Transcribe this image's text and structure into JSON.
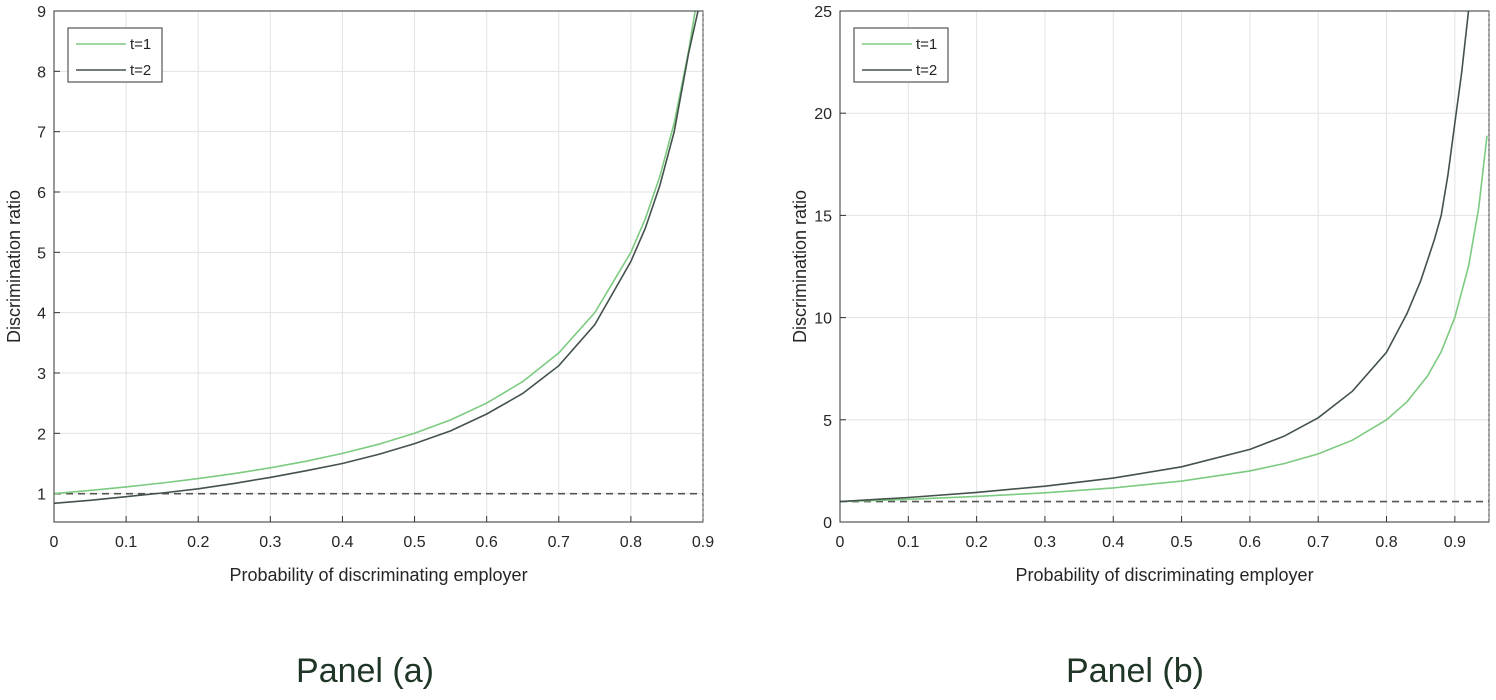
{
  "colors": {
    "t1": "#7ccb80",
    "t2": "#44524c",
    "reference": "#555555",
    "grid": "#e3e3e3",
    "title": "#1f3526"
  },
  "chart_data": [
    {
      "type": "line",
      "panel_title": "Panel (a)",
      "xlabel": "Probability of discriminating employer",
      "ylabel": "Discrimination ratio",
      "xlim": [
        0,
        0.9
      ],
      "ylim": [
        0.53,
        9
      ],
      "xticks": [
        "0",
        "0.1",
        "0.2",
        "0.3",
        "0.4",
        "0.5",
        "0.6",
        "0.7",
        "0.8",
        "0.9"
      ],
      "yticks": [
        "1",
        "2",
        "3",
        "4",
        "5",
        "6",
        "7",
        "8",
        "9"
      ],
      "grid": true,
      "legend_position": "top-left",
      "reference_line": {
        "y": 1,
        "style": "dashed"
      },
      "series": [
        {
          "name": "t=1",
          "x": [
            0,
            0.05,
            0.1,
            0.15,
            0.2,
            0.25,
            0.3,
            0.35,
            0.4,
            0.45,
            0.5,
            0.55,
            0.6,
            0.65,
            0.7,
            0.75,
            0.8,
            0.82,
            0.84,
            0.86,
            0.88,
            0.889
          ],
          "y": [
            1,
            1.053,
            1.111,
            1.176,
            1.25,
            1.333,
            1.429,
            1.538,
            1.667,
            1.818,
            2,
            2.222,
            2.5,
            2.857,
            3.333,
            4,
            5,
            5.556,
            6.25,
            7.143,
            8.333,
            9
          ]
        },
        {
          "name": "t=2",
          "x": [
            0,
            0.05,
            0.1,
            0.15,
            0.2,
            0.25,
            0.3,
            0.35,
            0.4,
            0.45,
            0.5,
            0.55,
            0.6,
            0.65,
            0.7,
            0.75,
            0.8,
            0.82,
            0.84,
            0.86,
            0.88,
            0.893
          ],
          "y": [
            0.84,
            0.89,
            0.95,
            1.01,
            1.08,
            1.17,
            1.27,
            1.38,
            1.5,
            1.65,
            1.83,
            2.04,
            2.32,
            2.66,
            3.12,
            3.8,
            4.85,
            5.4,
            6.1,
            7.0,
            8.3,
            9
          ]
        }
      ]
    },
    {
      "type": "line",
      "panel_title": "Panel (b)",
      "xlabel": "Probability of discriminating employer",
      "ylabel": "Discrimination ratio",
      "xlim": [
        0,
        0.95
      ],
      "ylim": [
        0,
        25
      ],
      "xticks": [
        "0",
        "0.1",
        "0.2",
        "0.3",
        "0.4",
        "0.5",
        "0.6",
        "0.7",
        "0.8",
        "0.9"
      ],
      "yticks": [
        "0",
        "5",
        "10",
        "15",
        "20",
        "25"
      ],
      "grid": true,
      "legend_position": "top-left",
      "reference_line": {
        "y": 1,
        "style": "dashed"
      },
      "series": [
        {
          "name": "t=1",
          "x": [
            0,
            0.1,
            0.2,
            0.3,
            0.4,
            0.5,
            0.6,
            0.65,
            0.7,
            0.75,
            0.8,
            0.83,
            0.86,
            0.88,
            0.9,
            0.92,
            0.935,
            0.947
          ],
          "y": [
            1,
            1.111,
            1.25,
            1.429,
            1.667,
            2,
            2.5,
            2.857,
            3.333,
            4,
            5,
            5.882,
            7.143,
            8.333,
            10,
            12.5,
            15.4,
            18.9
          ]
        },
        {
          "name": "t=2",
          "x": [
            0,
            0.1,
            0.2,
            0.3,
            0.4,
            0.5,
            0.6,
            0.65,
            0.7,
            0.75,
            0.8,
            0.83,
            0.85,
            0.87,
            0.88,
            0.89,
            0.9,
            0.91,
            0.92
          ],
          "y": [
            1,
            1.2,
            1.45,
            1.75,
            2.15,
            2.7,
            3.55,
            4.2,
            5.1,
            6.4,
            8.3,
            10.2,
            11.8,
            13.8,
            15,
            17,
            19.5,
            22,
            25
          ]
        }
      ]
    }
  ]
}
